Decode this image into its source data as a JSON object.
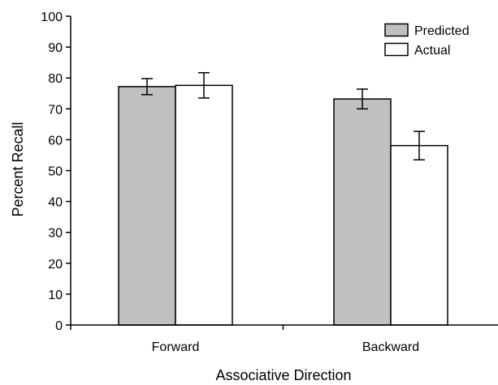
{
  "chart_data": {
    "type": "bar",
    "title": "",
    "xlabel": "Associative Direction",
    "ylabel": "Percent Recall",
    "ylim": [
      0,
      100
    ],
    "yticks": [
      0,
      10,
      20,
      30,
      40,
      50,
      60,
      70,
      80,
      90,
      100
    ],
    "categories": [
      "Forward",
      "Backward"
    ],
    "legend_position": "top-right",
    "grid": false,
    "series": [
      {
        "name": "Predicted",
        "color": "#c0c0c0",
        "values": [
          77.2,
          73.2
        ],
        "error": [
          2.6,
          3.2
        ]
      },
      {
        "name": "Actual",
        "color": "#ffffff",
        "values": [
          77.6,
          58.1
        ],
        "error": [
          4.1,
          4.6
        ]
      }
    ]
  }
}
